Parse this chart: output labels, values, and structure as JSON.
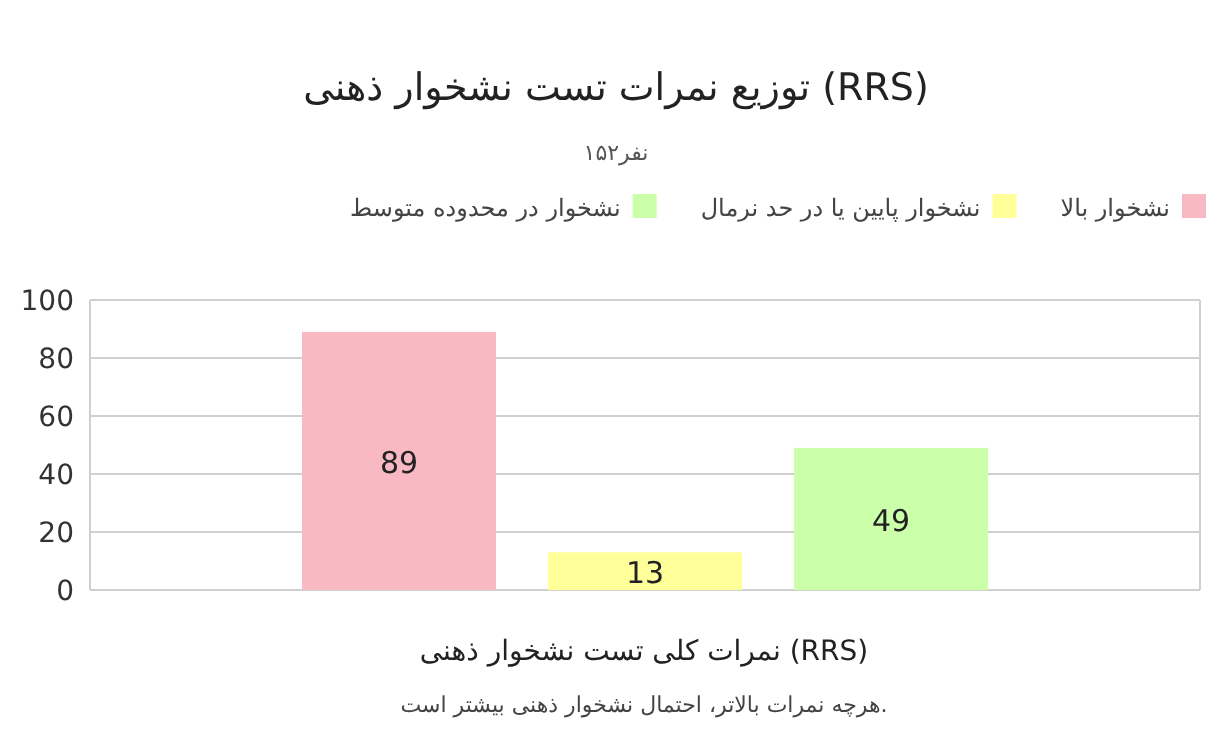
{
  "chart_data": {
    "type": "bar",
    "title": "توزیع نمرات تست نشخوار ذهنی (RRS)",
    "subtitle": "۱۵۲نفر",
    "xlabel": "نمرات کلی تست نشخوار ذهنی (RRS)",
    "annotations": [
      "هرچه نمرات بالاتر، احتمال نشخوار ذهنی بیشتر است."
    ],
    "categories": [
      null
    ],
    "series": [
      {
        "name": "نشخوار بالا",
        "color": "#f8b9c2",
        "values": [
          89
        ]
      },
      {
        "name": "نشخوار پایین یا در حد نرمال",
        "color": "#ffff99",
        "values": [
          13
        ]
      },
      {
        "name": "نشخوار در محدوده متوسط",
        "color": "#ccffaa",
        "values": [
          49
        ]
      }
    ],
    "ylim": [
      0,
      100
    ],
    "yticks": [
      0,
      20,
      40,
      60,
      80,
      100
    ],
    "grid": "y",
    "legend": "top",
    "data_labels": true
  }
}
